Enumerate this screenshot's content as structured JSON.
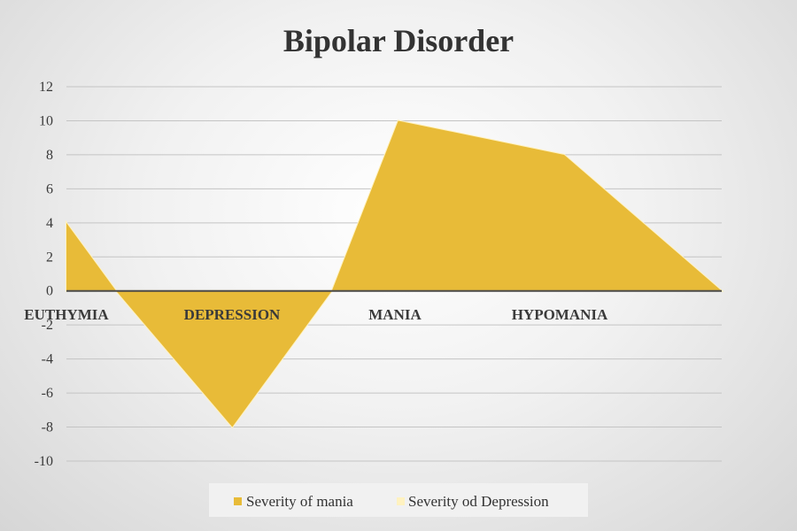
{
  "chart_data": {
    "type": "area",
    "title": "Bipolar Disorder",
    "categories": [
      "EUTHYMIA",
      "DEPRESSION",
      "MANIA",
      "HYPOMANIA"
    ],
    "x": [
      0,
      1,
      2,
      3,
      4,
      5,
      6
    ],
    "series": [
      {
        "name": "Severity of mania",
        "color": "#E8BB38",
        "points": [
          [
            0,
            4
          ],
          [
            0.6,
            0
          ],
          [
            2,
            -8
          ],
          [
            3.2,
            0
          ],
          [
            4,
            10
          ],
          [
            6,
            8
          ],
          [
            7.9,
            0
          ]
        ]
      },
      {
        "name": "Severity od Depression",
        "color": "#FFF2C0",
        "points": [
          [
            0,
            4
          ],
          [
            0.6,
            0
          ],
          [
            2,
            -8
          ],
          [
            3.2,
            0
          ],
          [
            4,
            10
          ],
          [
            6,
            8
          ],
          [
            7.9,
            0
          ]
        ]
      }
    ],
    "ylim": [
      -10,
      12
    ],
    "yticks": [
      12,
      10,
      8,
      6,
      4,
      2,
      0,
      -2,
      -4,
      -6,
      -8,
      -10
    ],
    "xlim": [
      0,
      7.9
    ],
    "grid": true,
    "legend": "bottom"
  }
}
